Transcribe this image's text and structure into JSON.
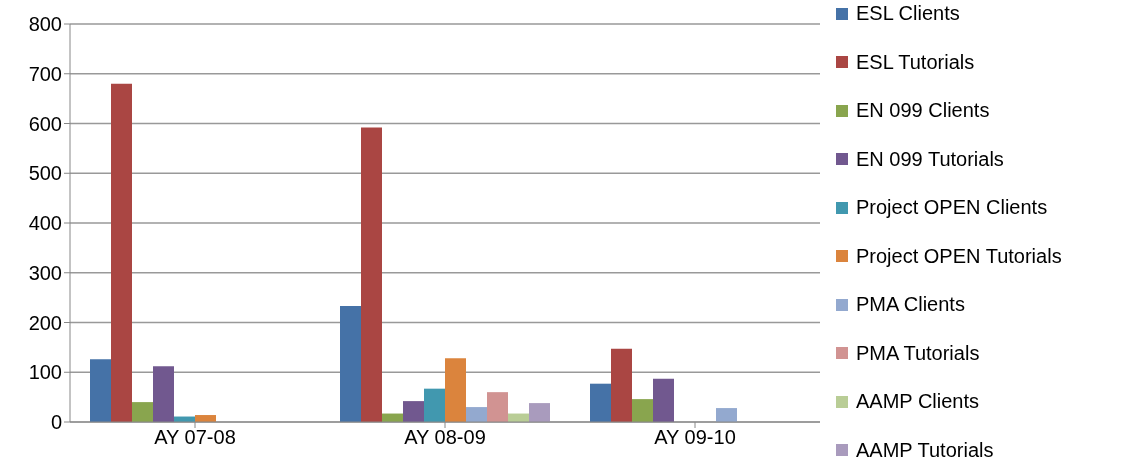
{
  "chart_data": {
    "type": "bar",
    "categories": [
      "AY 07-08",
      "AY 08-09",
      "AY 09-10"
    ],
    "series": [
      {
        "name": "ESL Clients",
        "color": "#4572a7",
        "values": [
          126,
          233,
          77
        ]
      },
      {
        "name": "ESL Tutorials",
        "color": "#aa4643",
        "values": [
          680,
          592,
          147
        ]
      },
      {
        "name": "EN 099 Clients",
        "color": "#89a54e",
        "values": [
          40,
          17,
          46
        ]
      },
      {
        "name": "EN 099 Tutorials",
        "color": "#71588f",
        "values": [
          112,
          42,
          87
        ]
      },
      {
        "name": "Project OPEN Clients",
        "color": "#4198af",
        "values": [
          11,
          67,
          null
        ]
      },
      {
        "name": "Project OPEN Tutorials",
        "color": "#db843d",
        "values": [
          14,
          128,
          null
        ]
      },
      {
        "name": "PMA Clients",
        "color": "#93a9cf",
        "values": [
          null,
          30,
          28
        ]
      },
      {
        "name": "PMA Tutorials",
        "color": "#d19392",
        "values": [
          null,
          60,
          null
        ]
      },
      {
        "name": "AAMP Clients",
        "color": "#b9cd96",
        "values": [
          null,
          17,
          null
        ]
      },
      {
        "name": "AAMP Tutorials",
        "color": "#a99bbd",
        "values": [
          null,
          38,
          null
        ]
      }
    ],
    "ylim": [
      0,
      800
    ],
    "yticks": [
      0,
      100,
      200,
      300,
      400,
      500,
      600,
      700,
      800
    ],
    "grid": "y",
    "legend": "right"
  }
}
